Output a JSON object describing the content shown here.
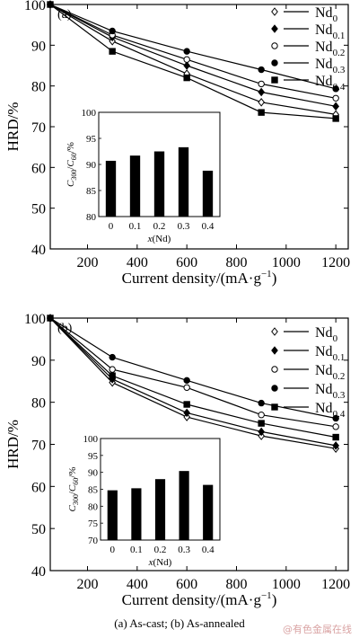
{
  "caption": "(a) As-cast; (b) As-annealed",
  "watermark": "@有色金属在线",
  "chart_data": [
    {
      "type": "line",
      "panel_label": "(a)",
      "xlabel": "Current density/(mA·g",
      "xlabel_sup": "−1",
      "xlabel_end": ")",
      "ylabel": "HRD/%",
      "x": [
        50,
        300,
        600,
        900,
        1200
      ],
      "xlim": [
        50,
        1250
      ],
      "ylim": [
        40,
        100
      ],
      "xticks": [
        200,
        400,
        600,
        800,
        1000,
        1200
      ],
      "yticks": [
        40,
        50,
        60,
        70,
        80,
        90,
        100
      ],
      "legend_position": "top-right",
      "series": [
        {
          "name": "Nd",
          "sub": "0",
          "marker": "diamond-open",
          "values": [
            100,
            91.0,
            83.0,
            76.0,
            73.0
          ]
        },
        {
          "name": "Nd",
          "sub": "0.1",
          "marker": "diamond-filled",
          "values": [
            100,
            92.0,
            85.0,
            78.5,
            75.0
          ]
        },
        {
          "name": "Nd",
          "sub": "0.2",
          "marker": "circle-open",
          "values": [
            100,
            92.5,
            86.5,
            80.5,
            77.0
          ]
        },
        {
          "name": "Nd",
          "sub": "0.3",
          "marker": "circle-filled",
          "values": [
            100,
            93.5,
            88.5,
            84.0,
            79.3
          ]
        },
        {
          "name": "Nd",
          "sub": "0.4",
          "marker": "square-filled",
          "values": [
            100,
            88.5,
            82.0,
            73.5,
            72.0
          ]
        }
      ],
      "inset": {
        "type": "bar",
        "ylabel_main": "C",
        "ylabel_sub1": "300",
        "ylabel_mid": "/C",
        "ylabel_sub2": "60",
        "ylabel_end": "/%",
        "xlabel": "x(Nd)",
        "categories": [
          "0",
          "0.1",
          "0.2",
          "0.3",
          "0.4"
        ],
        "values": [
          90.7,
          91.7,
          92.5,
          93.3,
          88.8
        ],
        "ylim": [
          80,
          100
        ],
        "yticks": [
          80,
          85,
          90,
          95,
          100
        ]
      }
    },
    {
      "type": "line",
      "panel_label": "(b)",
      "xlabel": "Current density/(mA·g",
      "xlabel_sup": "−1",
      "xlabel_end": ")",
      "ylabel": "HRD/%",
      "x": [
        50,
        300,
        600,
        900,
        1200
      ],
      "xlim": [
        50,
        1250
      ],
      "ylim": [
        40,
        100
      ],
      "xticks": [
        200,
        400,
        600,
        800,
        1000,
        1200
      ],
      "yticks": [
        40,
        50,
        60,
        70,
        80,
        90,
        100
      ],
      "legend_position": "top-right",
      "series": [
        {
          "name": "Nd",
          "sub": "0",
          "marker": "diamond-open",
          "values": [
            100,
            84.7,
            76.5,
            72.0,
            69.0
          ]
        },
        {
          "name": "Nd",
          "sub": "0.1",
          "marker": "diamond-filled",
          "values": [
            100,
            85.5,
            77.5,
            73.0,
            69.7
          ]
        },
        {
          "name": "Nd",
          "sub": "0.2",
          "marker": "circle-open",
          "values": [
            100,
            87.8,
            83.5,
            77.0,
            74.2
          ]
        },
        {
          "name": "Nd",
          "sub": "0.3",
          "marker": "circle-filled",
          "values": [
            100,
            90.7,
            85.2,
            79.8,
            76.2
          ]
        },
        {
          "name": "Nd",
          "sub": "0.4",
          "marker": "square-filled",
          "values": [
            100,
            86.3,
            79.5,
            75.0,
            71.7
          ]
        }
      ],
      "inset": {
        "type": "bar",
        "ylabel_main": "C",
        "ylabel_sub1": "300",
        "ylabel_mid": "/C",
        "ylabel_sub2": "60",
        "ylabel_end": "/%",
        "xlabel": "x(Nd)",
        "categories": [
          "0",
          "0.1",
          "0.2",
          "0.3",
          "0.4"
        ],
        "values": [
          84.7,
          85.3,
          88.0,
          90.4,
          86.3
        ],
        "ylim": [
          70,
          100
        ],
        "yticks": [
          70,
          75,
          80,
          85,
          90,
          95,
          100
        ]
      }
    }
  ]
}
